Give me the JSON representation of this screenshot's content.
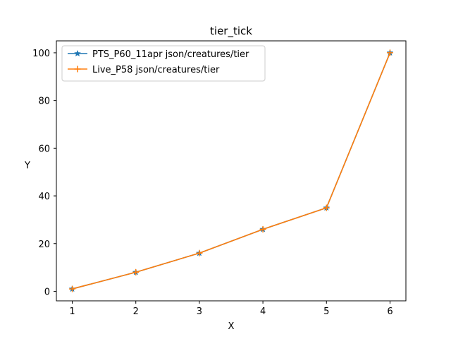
{
  "chart_data": {
    "type": "line",
    "title": "tier_tick",
    "xlabel": "X",
    "ylabel": "Y",
    "xlim": [
      0.75,
      6.25
    ],
    "ylim": [
      -4,
      105
    ],
    "xticks": [
      1,
      2,
      3,
      4,
      5,
      6
    ],
    "yticks": [
      0,
      20,
      40,
      60,
      80,
      100
    ],
    "grid": false,
    "legend_position": "top-left",
    "series": [
      {
        "name": "PTS_P60_11apr json/creatures/tier",
        "color": "#1f77b4",
        "marker": "star",
        "x": [
          1,
          2,
          3,
          4,
          5,
          6
        ],
        "y": [
          1,
          8,
          16,
          26,
          35,
          100
        ]
      },
      {
        "name": "Live_P58 json/creatures/tier",
        "color": "#ff7f0e",
        "marker": "plus",
        "x": [
          1,
          2,
          3,
          4,
          5,
          6
        ],
        "y": [
          1,
          8,
          16,
          26,
          35,
          100
        ]
      }
    ]
  }
}
